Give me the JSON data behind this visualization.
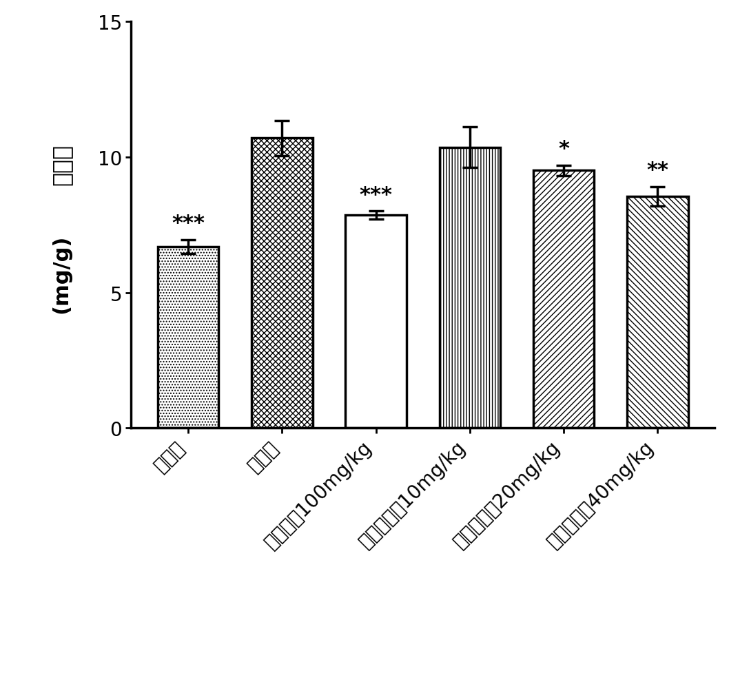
{
  "categories": [
    "正常组",
    "模型组",
    "利巴韦林100mg/kg",
    "火炭母多糖10mg/kg",
    "火炭母多糖20mg/kg",
    "火炭母多糖40mg/kg"
  ],
  "values": [
    6.7,
    10.7,
    7.85,
    10.35,
    9.5,
    8.55
  ],
  "errors": [
    0.25,
    0.65,
    0.15,
    0.75,
    0.2,
    0.35
  ],
  "significance": [
    "***",
    "",
    "***",
    "",
    "*",
    "**"
  ],
  "ylabel_line1": "肺指数",
  "ylabel_line2": "(mg/g)",
  "ylim": [
    0,
    15
  ],
  "yticks": [
    0,
    5,
    10,
    15
  ],
  "bar_width": 0.65,
  "hatch_patterns": [
    "....",
    "XXXX",
    "====",
    "||||",
    "////",
    "\\\\\\\\"
  ],
  "face_color": "white",
  "edge_color": "black",
  "sig_fontsize": 22,
  "ylabel_fontsize": 24,
  "tick_fontsize": 20,
  "xlabel_fontsize": 20,
  "bar_linewidth": 2.5
}
